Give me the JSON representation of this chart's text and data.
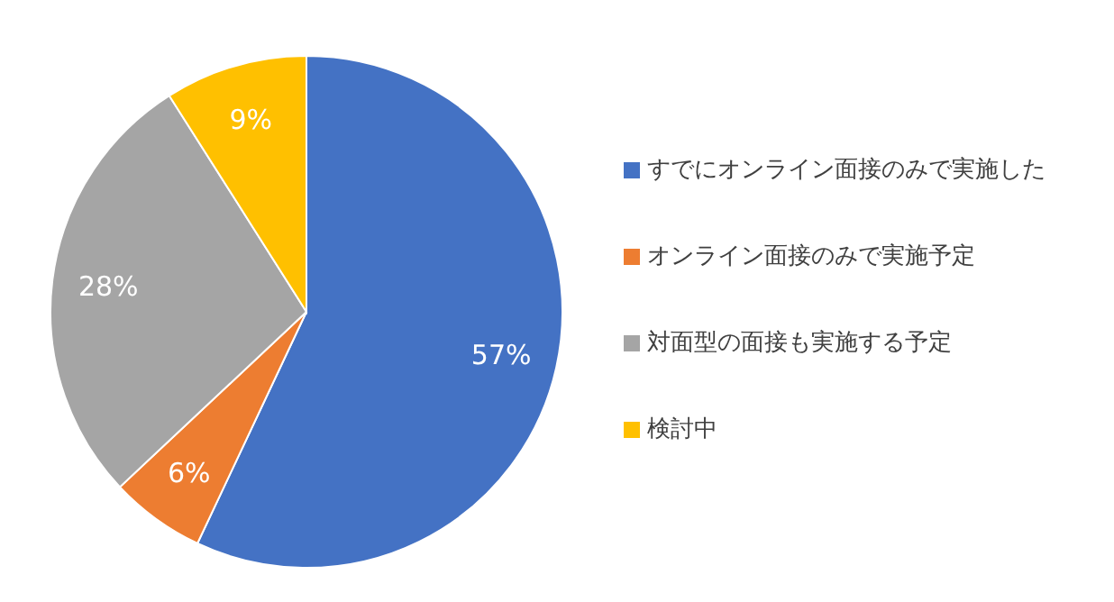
{
  "chart_data": {
    "type": "pie",
    "categories": [
      "すでにオンライン面接のみで実施した",
      "オンライン面接のみで実施予定",
      "対面型の面接も実施する予定",
      "検討中"
    ],
    "values": [
      57,
      6,
      28,
      9
    ],
    "colors": [
      "#4472c4",
      "#ed7d31",
      "#a5a5a5",
      "#ffc000"
    ],
    "value_labels": [
      "57%",
      "6%",
      "28%",
      "9%"
    ],
    "legend": "right"
  }
}
